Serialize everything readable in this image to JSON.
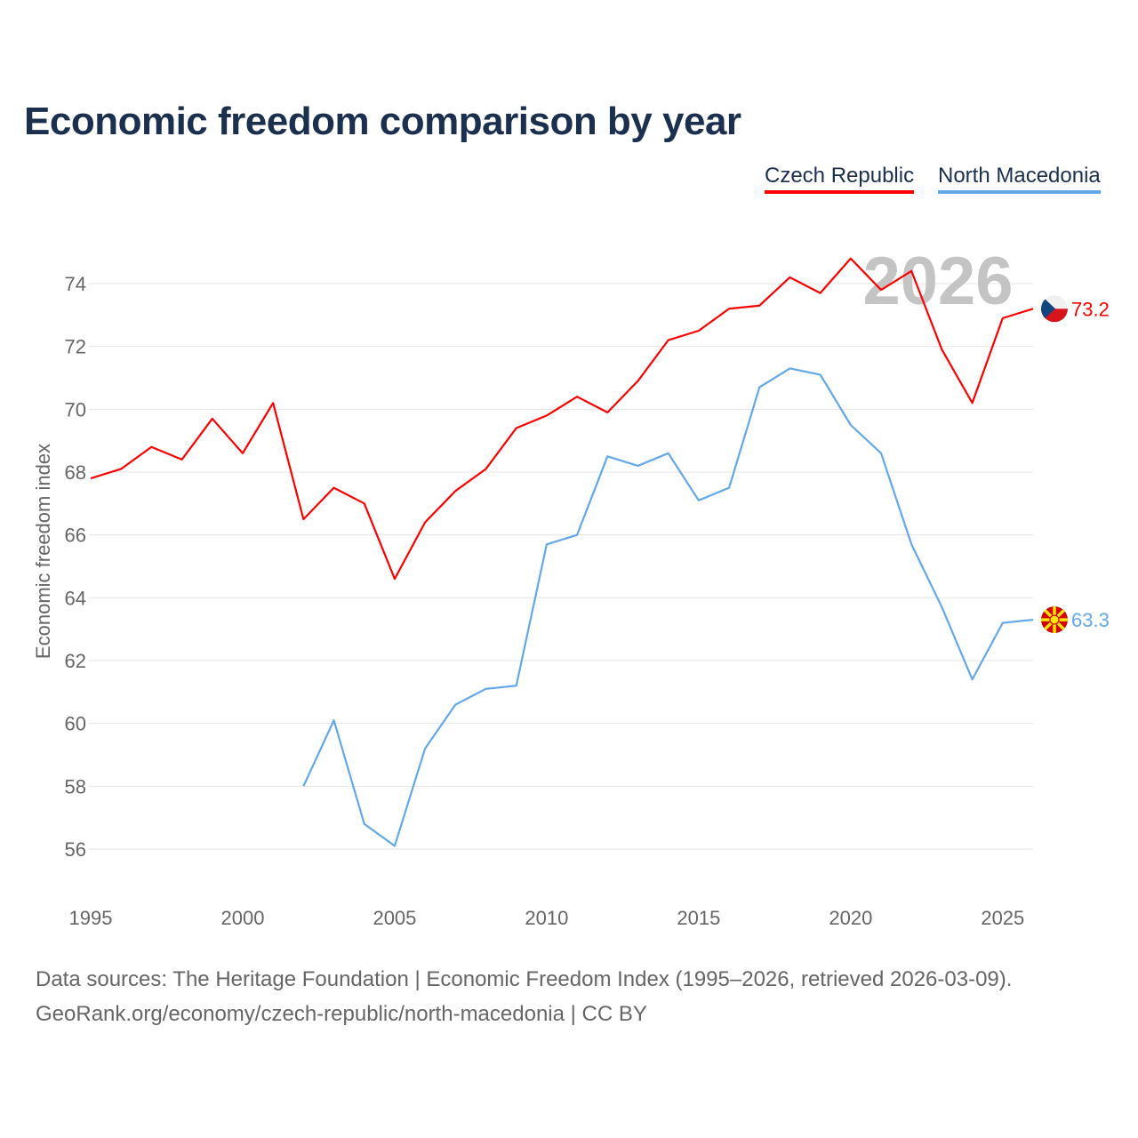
{
  "title": "Economic freedom comparison by year",
  "current_year_label": "2026",
  "footer": {
    "line1": "Data sources: The Heritage Foundation | Economic Freedom Index (1995–2026, retrieved 2026-03-09).",
    "line2": "GeoRank.org/economy/czech-republic/north-macedonia | CC BY"
  },
  "chart_data": {
    "type": "line",
    "title": "Economic freedom comparison by year",
    "xlabel": "",
    "ylabel": "Economic freedom index",
    "xlim": [
      1995,
      2026
    ],
    "ylim": [
      55,
      76
    ],
    "x_ticks": [
      1995,
      2000,
      2005,
      2010,
      2015,
      2020,
      2025
    ],
    "y_ticks": [
      56,
      58,
      60,
      62,
      64,
      66,
      68,
      70,
      72,
      74
    ],
    "grid": true,
    "legend_position": "top-right",
    "series": [
      {
        "name": "Czech Republic",
        "color": "#ff0000",
        "flag": "czech-flag",
        "end_label": "73.2",
        "x": [
          1995,
          1996,
          1997,
          1998,
          1999,
          2000,
          2001,
          2002,
          2003,
          2004,
          2005,
          2006,
          2007,
          2008,
          2009,
          2010,
          2011,
          2012,
          2013,
          2014,
          2015,
          2016,
          2017,
          2018,
          2019,
          2020,
          2021,
          2022,
          2023,
          2024,
          2025,
          2026
        ],
        "values": [
          67.8,
          68.1,
          68.8,
          68.4,
          69.7,
          68.6,
          70.2,
          66.5,
          67.5,
          67.0,
          64.6,
          66.4,
          67.4,
          68.1,
          69.4,
          69.8,
          70.4,
          69.9,
          70.9,
          72.2,
          72.5,
          73.2,
          73.3,
          74.2,
          73.7,
          74.8,
          73.8,
          74.4,
          71.9,
          70.2,
          72.9,
          73.2
        ]
      },
      {
        "name": "North Macedonia",
        "color": "#62a8ea",
        "flag": "north-macedonia-flag",
        "end_label": "63.3",
        "x": [
          2002,
          2003,
          2004,
          2005,
          2006,
          2007,
          2008,
          2009,
          2010,
          2011,
          2012,
          2013,
          2014,
          2015,
          2016,
          2017,
          2018,
          2019,
          2020,
          2021,
          2022,
          2023,
          2024,
          2025,
          2026
        ],
        "values": [
          58.0,
          60.1,
          56.8,
          56.1,
          59.2,
          60.6,
          61.1,
          61.2,
          65.7,
          66.0,
          68.5,
          68.2,
          68.6,
          67.1,
          67.5,
          70.7,
          71.3,
          71.1,
          69.5,
          68.6,
          65.7,
          63.7,
          61.4,
          63.2,
          63.3
        ]
      }
    ]
  }
}
